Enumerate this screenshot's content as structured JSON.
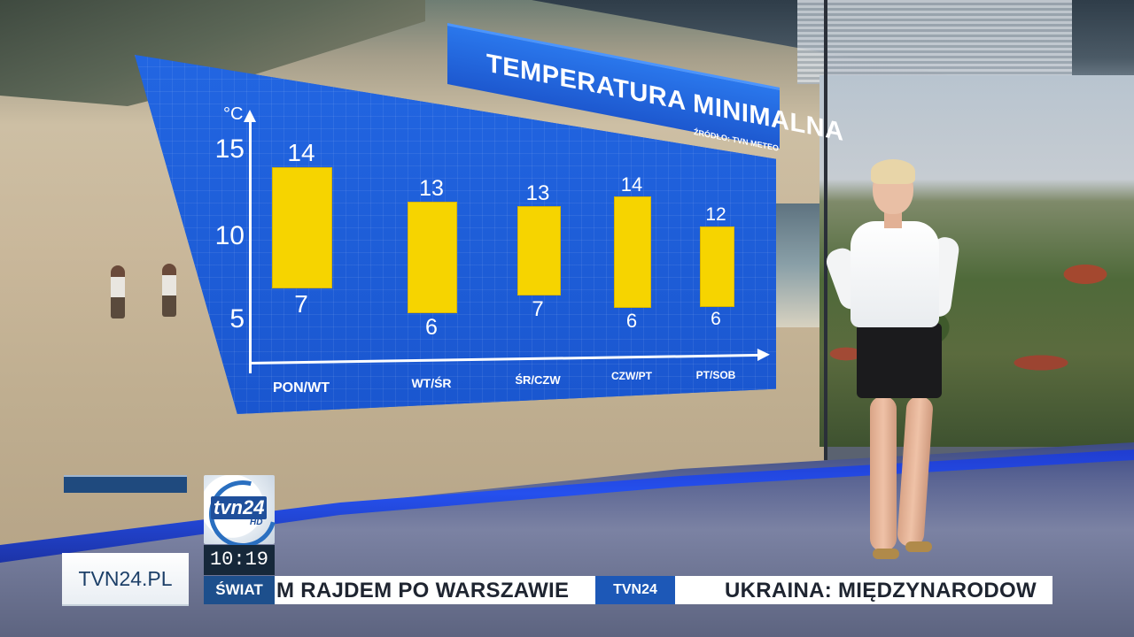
{
  "chart_data": {
    "type": "bar",
    "title": "TEMPERATURA MINIMALNA",
    "source": "ŹRÓDŁO: TVN METEO",
    "ylabel": "°C",
    "yticks": [
      "15",
      "10",
      "5"
    ],
    "categories": [
      "PON/WT",
      "WT/ŚR",
      "ŚR/CZW",
      "CZW/PT",
      "PT/SOB"
    ],
    "series": [
      {
        "values": [
          14,
          13,
          13,
          14,
          12
        ]
      },
      {
        "values": [
          7,
          6,
          7,
          6,
          6
        ]
      }
    ],
    "labels_top": [
      "14",
      "13",
      "13",
      "14",
      "12"
    ],
    "labels_bottom": [
      "7",
      "6",
      "7",
      "6",
      "6"
    ],
    "colors": {
      "bar": "#f6d400",
      "panel": "#1c5fdc"
    }
  },
  "lower_third": {
    "site": "TVN24.PL",
    "clock": "10:19",
    "section": "ŚWIAT",
    "logo_text": "tvn24",
    "logo_hd": "HD",
    "ticker_left": "M RAJDEM PO WARSZAWIE",
    "ticker_sep": "TVN24",
    "ticker_right": "UKRAINA: MIĘDZYNARODOW"
  }
}
